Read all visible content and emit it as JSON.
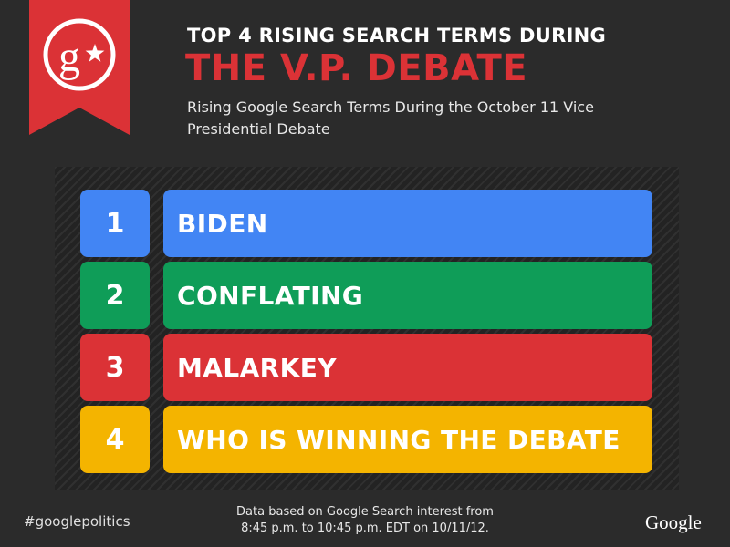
{
  "header": {
    "title_line1": "TOP 4 RISING SEARCH TERMS DURING",
    "title_line2": "THE V.P. DEBATE",
    "subtitle": "Rising Google Search Terms During the October 11 Vice Presidential Debate"
  },
  "badge": {
    "icon": "google-politics-g-star-icon",
    "color": "#db3236"
  },
  "ranking": [
    {
      "rank": "1",
      "term": "BIDEN",
      "color": "#4285f4"
    },
    {
      "rank": "2",
      "term": "CONFLATING",
      "color": "#0f9d58"
    },
    {
      "rank": "3",
      "term": "MALARKEY",
      "color": "#db3236"
    },
    {
      "rank": "4",
      "term": "WHO IS WINNING THE DEBATE",
      "color": "#f4b400"
    }
  ],
  "footer": {
    "hashtag": "#googlepolitics",
    "note_line1": "Data based on Google Search interest from",
    "note_line2": "8:45 p.m. to 10:45 p.m. EDT on 10/11/12.",
    "logo": "Google"
  }
}
